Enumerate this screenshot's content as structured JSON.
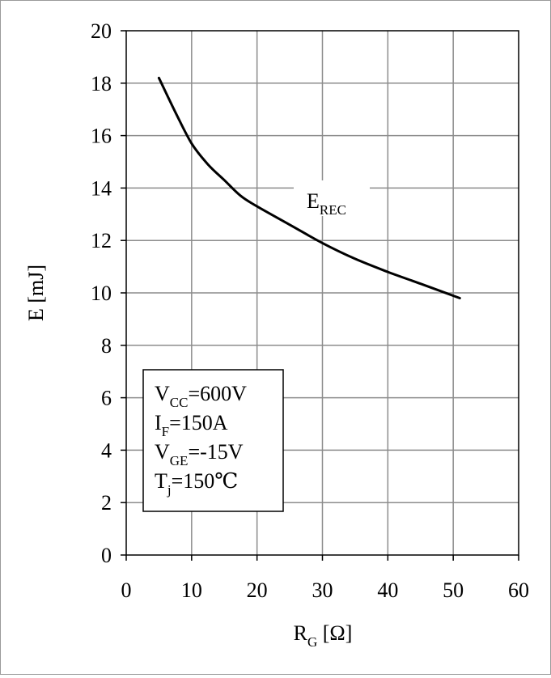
{
  "chart_data": {
    "type": "line",
    "xlabel": {
      "main": "R",
      "sub": "G",
      "unit": " [Ω]"
    },
    "ylabel": "E [mJ]",
    "xlim": [
      0,
      60
    ],
    "ylim": [
      0,
      20
    ],
    "x_ticks": [
      "0",
      "10",
      "20",
      "30",
      "40",
      "50",
      "60"
    ],
    "y_ticks": [
      "0",
      "2",
      "4",
      "6",
      "8",
      "10",
      "12",
      "14",
      "16",
      "18",
      "20"
    ],
    "grid": true,
    "series": [
      {
        "name": {
          "main": "E",
          "sub": "REC"
        },
        "color": "#000000",
        "x": [
          5,
          7.5,
          10,
          12.5,
          15,
          17.5,
          20,
          25,
          30,
          35,
          40,
          45,
          51
        ],
        "y": [
          18.2,
          16.9,
          15.7,
          14.9,
          14.3,
          13.7,
          13.3,
          12.6,
          11.9,
          11.3,
          10.8,
          10.35,
          9.8
        ]
      }
    ],
    "annotation": {
      "lines": [
        {
          "main": "V",
          "sub": "CC",
          "rest": "=600V"
        },
        {
          "main": "I",
          "sub": "F",
          "rest": "=150A"
        },
        {
          "main": "V",
          "sub": "GE",
          "rest": "=-15V"
        },
        {
          "main": "T",
          "sub": "j",
          "rest": "=150℃"
        }
      ]
    }
  }
}
